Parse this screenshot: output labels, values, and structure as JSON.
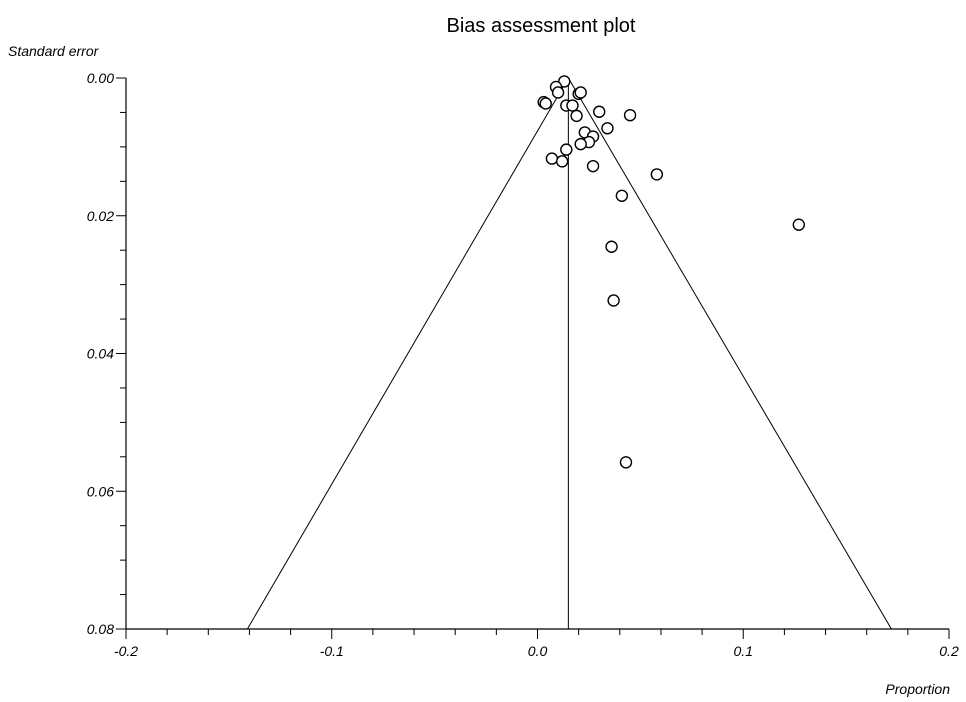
{
  "chart_data": {
    "type": "scatter",
    "title": "Bias assessment plot",
    "xlabel": "Proportion",
    "ylabel": "Standard error",
    "xlim": [
      -0.2,
      0.2
    ],
    "ylim": [
      0.0,
      0.08
    ],
    "y_inverted": true,
    "x_ticks": [
      "-0.2",
      "-0.1",
      "0.0",
      "0.1",
      "0.2"
    ],
    "y_ticks": [
      "0.00",
      "0.02",
      "0.04",
      "0.06",
      "0.08"
    ],
    "x_tick_values": [
      -0.2,
      -0.1,
      0.0,
      0.1,
      0.2
    ],
    "y_tick_values": [
      0.0,
      0.02,
      0.04,
      0.06,
      0.08
    ],
    "grid": false,
    "pooled_estimate": 0.015,
    "funnel_limits": {
      "apex": [
        0.015,
        0.0
      ],
      "left_base": [
        -0.141,
        0.08
      ],
      "right_base": [
        0.172,
        0.08
      ]
    },
    "points": [
      {
        "x": 0.013,
        "y": 0.0005
      },
      {
        "x": 0.009,
        "y": 0.0013
      },
      {
        "x": 0.01,
        "y": 0.0021
      },
      {
        "x": 0.02,
        "y": 0.0023
      },
      {
        "x": 0.021,
        "y": 0.0021
      },
      {
        "x": 0.003,
        "y": 0.0035
      },
      {
        "x": 0.004,
        "y": 0.0037
      },
      {
        "x": 0.014,
        "y": 0.004
      },
      {
        "x": 0.017,
        "y": 0.004
      },
      {
        "x": 0.03,
        "y": 0.0049
      },
      {
        "x": 0.019,
        "y": 0.0055
      },
      {
        "x": 0.045,
        "y": 0.0054
      },
      {
        "x": 0.034,
        "y": 0.0073
      },
      {
        "x": 0.023,
        "y": 0.0079
      },
      {
        "x": 0.027,
        "y": 0.0085
      },
      {
        "x": 0.025,
        "y": 0.0093
      },
      {
        "x": 0.021,
        "y": 0.0096
      },
      {
        "x": 0.014,
        "y": 0.0104
      },
      {
        "x": 0.007,
        "y": 0.0117
      },
      {
        "x": 0.012,
        "y": 0.0121
      },
      {
        "x": 0.027,
        "y": 0.0128
      },
      {
        "x": 0.058,
        "y": 0.014
      },
      {
        "x": 0.041,
        "y": 0.0171
      },
      {
        "x": 0.127,
        "y": 0.0213
      },
      {
        "x": 0.036,
        "y": 0.0245
      },
      {
        "x": 0.037,
        "y": 0.0323
      },
      {
        "x": 0.043,
        "y": 0.0558
      }
    ]
  }
}
